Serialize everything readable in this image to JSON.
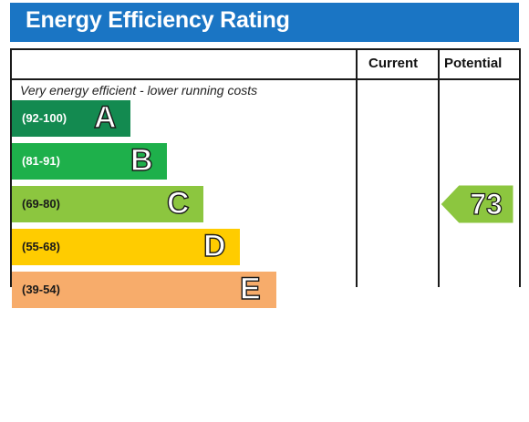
{
  "header": {
    "title": "Energy Efficiency Rating"
  },
  "columns": {
    "current": "Current",
    "potential": "Potential"
  },
  "notes": {
    "top": "Very energy efficient - lower running costs"
  },
  "chart_data": {
    "type": "table",
    "title": "Energy Efficiency Rating",
    "bands": [
      {
        "letter": "A",
        "range": "(92-100)",
        "color": "#138a50"
      },
      {
        "letter": "B",
        "range": "(81-91)",
        "color": "#1eb04b"
      },
      {
        "letter": "C",
        "range": "(69-80)",
        "color": "#8cc63f"
      },
      {
        "letter": "D",
        "range": "(55-68)",
        "color": "#ffcc00"
      },
      {
        "letter": "E",
        "range": "(39-54)",
        "color": "#f7ac6b"
      }
    ],
    "current": null,
    "potential": {
      "value": 73,
      "band": "C",
      "color": "#8cc63f"
    }
  }
}
